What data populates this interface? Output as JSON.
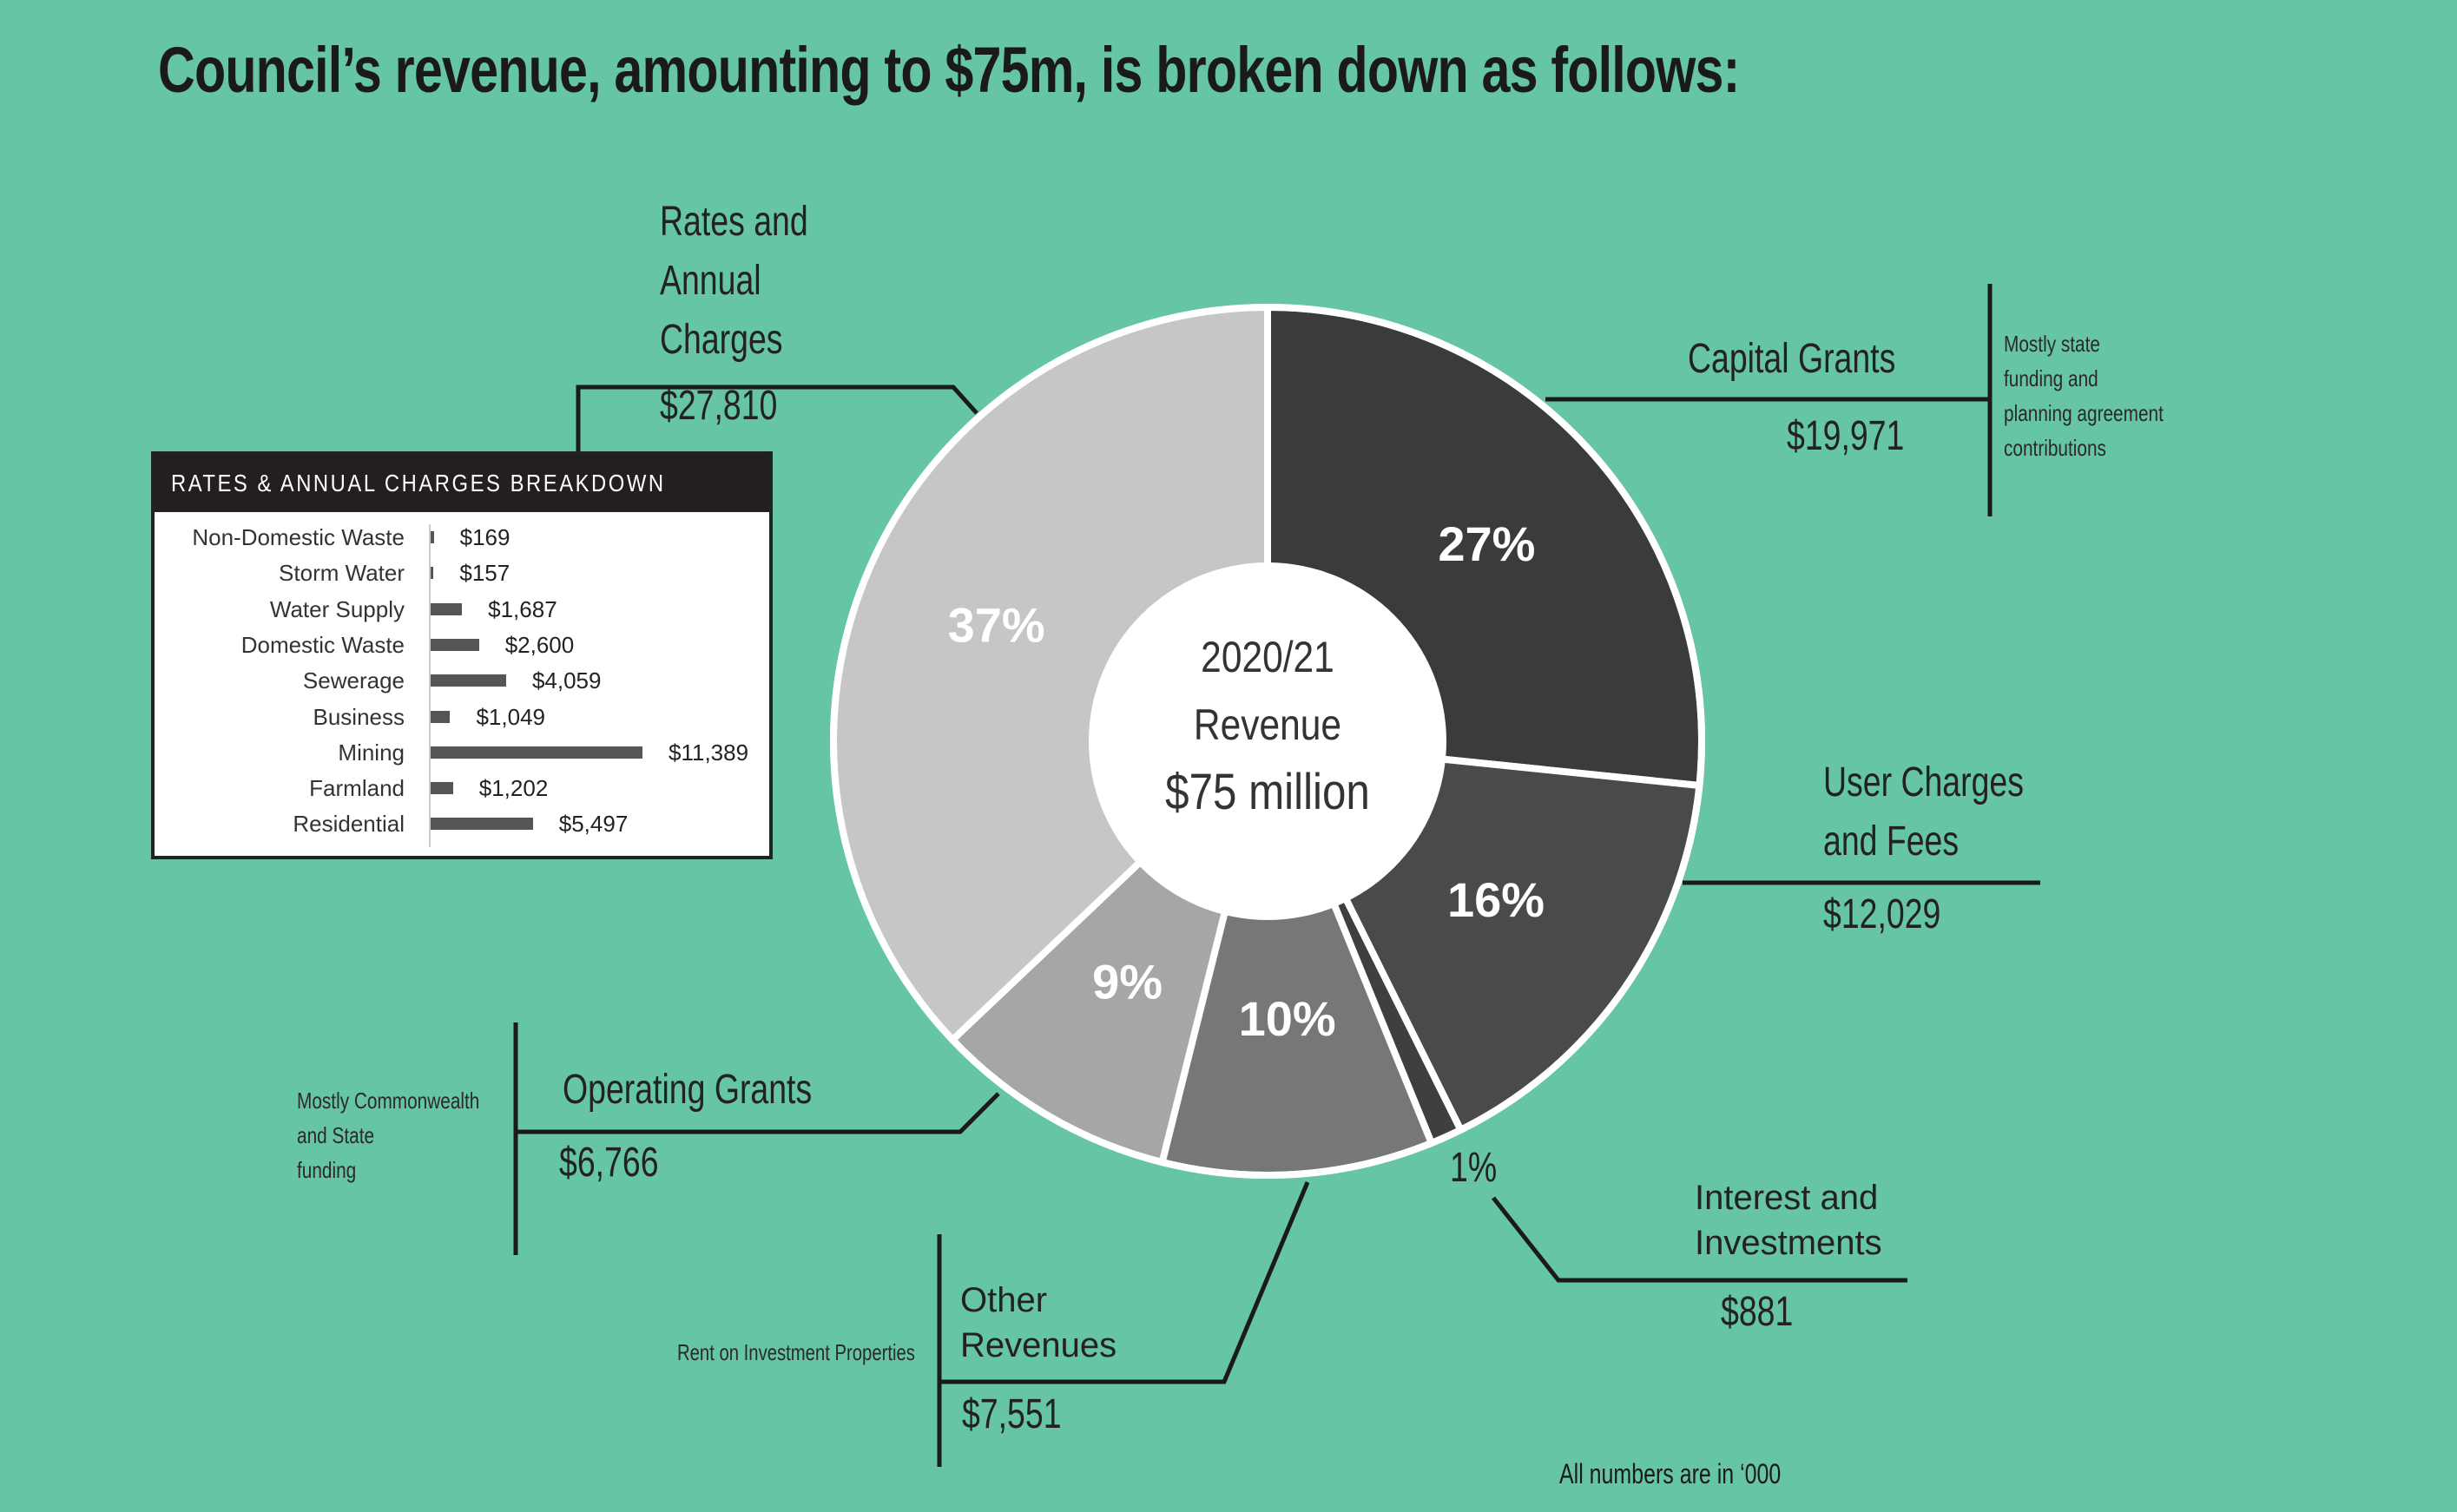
{
  "title": "Council’s revenue, amounting to $75m, is broken down as follows:",
  "center": {
    "year": "2020/21",
    "label": "Revenue",
    "total": "$75 million"
  },
  "footnote": "All numbers are in ‘000",
  "segments": {
    "rates": {
      "name_line1": "Rates and",
      "name_line2": "Annual",
      "name_line3": "Charges",
      "value": "$27,810",
      "pct": "37%"
    },
    "capital": {
      "name": "Capital Grants",
      "value": "$19,971",
      "pct": "27%",
      "note_line1": "Mostly state",
      "note_line2": "funding and",
      "note_line3": "planning agreement",
      "note_line4": "contributions"
    },
    "user": {
      "name_line1": "User Charges",
      "name_line2": "and Fees",
      "value": "$12,029",
      "pct": "16%"
    },
    "interest": {
      "name_line1": "Interest and",
      "name_line2": "Investments",
      "value": "$881",
      "pct": "1%"
    },
    "other": {
      "name_line1": "Other",
      "name_line2": "Revenues",
      "value": "$7,551",
      "pct": "10%",
      "note": "Rent on Investment Properties"
    },
    "operating": {
      "name": "Operating Grants",
      "value": "$6,766",
      "pct": "9%",
      "note_line1": "Mostly Commonwealth",
      "note_line2": "and State",
      "note_line3": "funding"
    }
  },
  "breakdown": {
    "header": "RATES & ANNUAL CHARGES BREAKDOWN",
    "rows": [
      {
        "label": "Non-Domestic Waste",
        "display": "$169"
      },
      {
        "label": "Storm Water",
        "display": "$157"
      },
      {
        "label": "Water Supply",
        "display": "$1,687"
      },
      {
        "label": "Domestic Waste",
        "display": "$2,600"
      },
      {
        "label": "Sewerage",
        "display": "$4,059"
      },
      {
        "label": "Business",
        "display": "$1,049"
      },
      {
        "label": "Mining",
        "display": "$11,389"
      },
      {
        "label": "Farmland",
        "display": "$1,202"
      },
      {
        "label": "Residential",
        "display": "$5,497"
      }
    ]
  },
  "chart_data": [
    {
      "type": "pie",
      "title": "",
      "categories": [
        "Capital Grants",
        "User Charges and Fees",
        "Interest and Investments",
        "Other Revenues",
        "Operating Grants",
        "Rates and Annual Charges"
      ],
      "values": [
        19971,
        12029,
        881,
        7551,
        6766,
        27810
      ],
      "percent_labels": [
        "27%",
        "16%",
        "1%",
        "10%",
        "9%",
        "37%"
      ],
      "colors": [
        "#3b3b3b",
        "#4a4a4a",
        "#3f3f3f",
        "#777777",
        "#a6a6a6",
        "#c6c6c6"
      ],
      "donut": true,
      "units": "$'000"
    },
    {
      "type": "bar",
      "orientation": "horizontal",
      "title": "RATES & ANNUAL CHARGES BREAKDOWN",
      "categories": [
        "Non-Domestic Waste",
        "Storm Water",
        "Water Supply",
        "Domestic Waste",
        "Sewerage",
        "Business",
        "Mining",
        "Farmland",
        "Residential"
      ],
      "values": [
        169,
        157,
        1687,
        2600,
        4059,
        1049,
        11389,
        1202,
        5497
      ],
      "bar_color": "#555555",
      "units": "$'000"
    }
  ]
}
